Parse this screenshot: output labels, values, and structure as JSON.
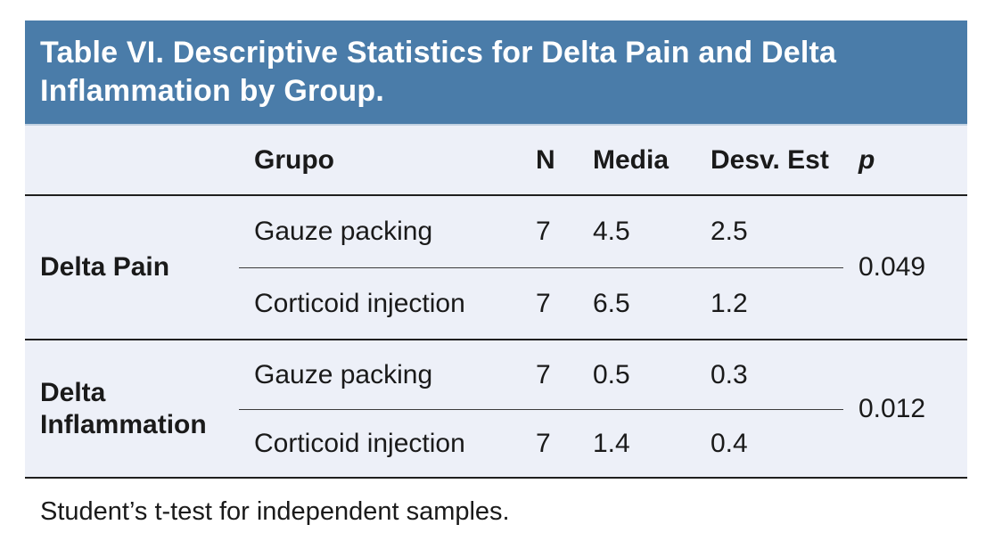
{
  "table": {
    "title": "Table VI. Descriptive Statistics for Delta Pain and Delta Inflammation by Group.",
    "columns": {
      "label": "",
      "grupo": "Grupo",
      "n": "N",
      "media": "Media",
      "desv": "Desv. Est",
      "p": "p"
    },
    "sections": [
      {
        "label": "Delta Pain",
        "p": "0.049",
        "rows": [
          {
            "grupo": "Gauze packing",
            "n": "7",
            "media": "4.5",
            "desv": "2.5"
          },
          {
            "grupo": "Corticoid injection",
            "n": "7",
            "media": "6.5",
            "desv": "1.2"
          }
        ]
      },
      {
        "label": "Delta Inflammation",
        "p": "0.012",
        "rows": [
          {
            "grupo": "Gauze packing",
            "n": "7",
            "media": "0.5",
            "desv": "0.3"
          },
          {
            "grupo": "Corticoid injection",
            "n": "7",
            "media": "1.4",
            "desv": "0.4"
          }
        ]
      }
    ],
    "footnote": "Student’s t-test for independent samples.",
    "colors": {
      "header_bg": "#4A7CA9",
      "body_bg": "#EDF0F8",
      "title_text": "#FFFFFF",
      "body_text": "#1A1A1A",
      "rule": "#1F1F1F"
    }
  }
}
